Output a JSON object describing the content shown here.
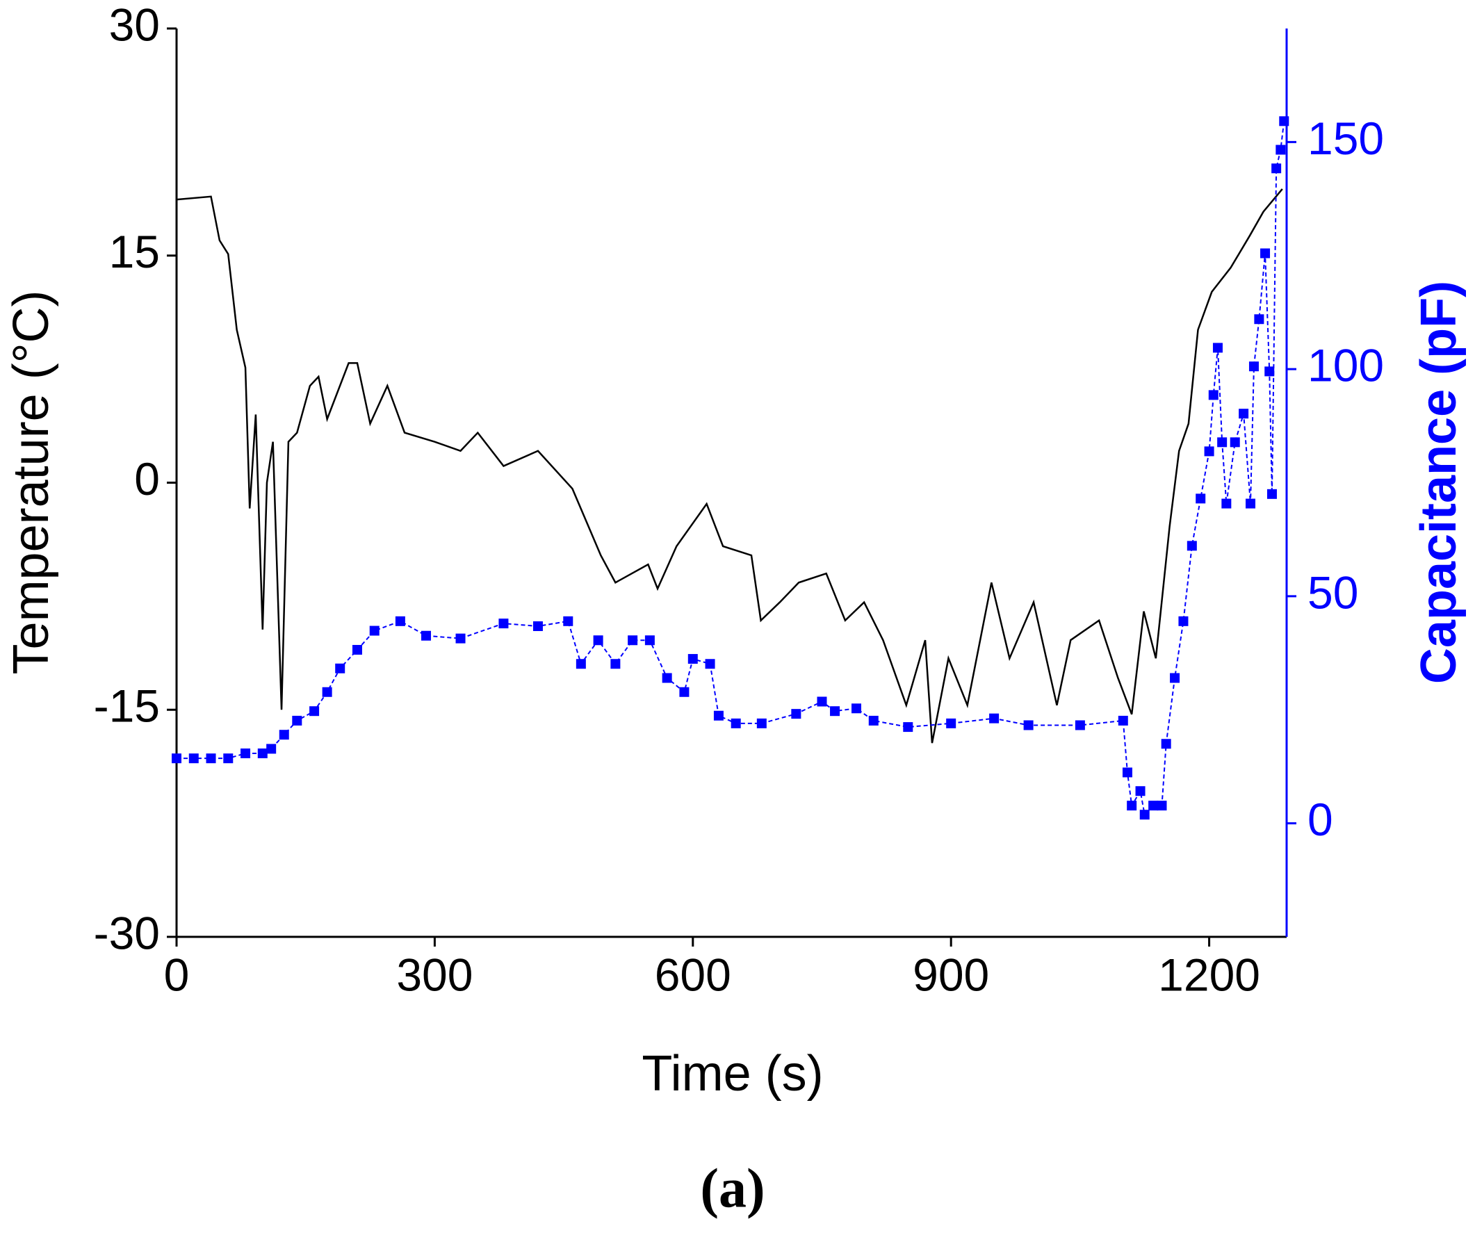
{
  "chart_data": {
    "type": "line",
    "xlabel": "Time (s)",
    "ylabel": "Temperature (°C)",
    "y2label": "Capacitance (pF)",
    "caption": "(a)",
    "xlim": [
      0,
      1290
    ],
    "xticks": [
      0,
      300,
      600,
      900,
      1200
    ],
    "ylim": [
      -30,
      30
    ],
    "yticks": [
      -30,
      -15,
      0,
      15,
      30
    ],
    "y2lim": [
      -25,
      175
    ],
    "y2ticks": [
      0,
      50,
      100,
      150
    ],
    "series": [
      {
        "color": "#000000",
        "marker": false,
        "x": [
          0,
          40,
          50,
          60,
          70,
          80,
          85,
          92,
          100,
          105,
          112,
          122,
          130,
          140,
          155,
          165,
          175,
          200,
          210,
          225,
          245,
          265,
          300,
          330,
          350,
          380,
          420,
          460,
          493,
          510,
          548,
          559,
          581,
          616,
          635,
          668,
          679,
          701,
          723,
          755,
          777,
          799,
          821,
          848,
          870,
          878,
          897,
          919,
          947,
          968,
          996,
          1023,
          1039,
          1072,
          1094,
          1110,
          1124,
          1138,
          1154,
          1165,
          1176,
          1187,
          1203,
          1225,
          1247,
          1263,
          1285
        ],
        "values": [
          18.7,
          18.9,
          16,
          15.1,
          10.1,
          7.6,
          -1.7,
          4.5,
          -9.7,
          0.0,
          2.7,
          -15,
          2.7,
          3.3,
          6.4,
          7.0,
          4.2,
          7.9,
          7.9,
          3.9,
          6.4,
          3.3,
          2.7,
          2.1,
          3.3,
          1.1,
          2.1,
          -0.4,
          -4.8,
          -6.6,
          -5.4,
          -7.0,
          -4.2,
          -1.4,
          -4.2,
          -4.8,
          -9.1,
          -7.9,
          -6.6,
          -6.0,
          -9.1,
          -7.9,
          -10.4,
          -14.7,
          -10.4,
          -17.2,
          -11.6,
          -14.7,
          -6.6,
          -11.6,
          -7.9,
          -14.7,
          -10.4,
          -9.1,
          -12.9,
          -15.3,
          -8.5,
          -11.6,
          -2.9,
          2.1,
          3.9,
          10.1,
          12.6,
          14.2,
          16.3,
          17.9,
          19.4
        ]
      },
      {
        "color": "#0000ff",
        "marker": true,
        "axis": "y2",
        "x": [
          0,
          20,
          40,
          60,
          80,
          100,
          110,
          125,
          140,
          160,
          175,
          190,
          210,
          230,
          260,
          290,
          330,
          380,
          420,
          455,
          470,
          490,
          510,
          530,
          550,
          570,
          590,
          600,
          620,
          630,
          650,
          680,
          720,
          750,
          765,
          790,
          810,
          850,
          900,
          950,
          990,
          1050,
          1100,
          1105,
          1110,
          1120,
          1125,
          1135,
          1145,
          1150,
          1160,
          1170,
          1180,
          1190,
          1200,
          1205,
          1210,
          1215,
          1220,
          1230,
          1240,
          1248,
          1252,
          1258,
          1265,
          1270,
          1273,
          1278,
          1283,
          1287
        ],
        "values": [
          14.3,
          14.3,
          14.3,
          14.3,
          15.4,
          15.4,
          16.4,
          19.5,
          22.6,
          24.7,
          28.9,
          34.1,
          38.2,
          42.4,
          44.5,
          41.3,
          40.7,
          44.0,
          43.4,
          44.5,
          35.1,
          40.3,
          35.1,
          40.3,
          40.3,
          32.0,
          28.9,
          36.2,
          35.1,
          23.7,
          22.0,
          22.0,
          24.1,
          26.8,
          24.7,
          25.3,
          22.6,
          21.2,
          22.0,
          23.1,
          21.6,
          21.6,
          22.6,
          11.2,
          3.9,
          7.1,
          1.9,
          3.9,
          3.9,
          17.5,
          32.0,
          44.5,
          61.1,
          71.5,
          81.9,
          94.3,
          104.7,
          83.9,
          70.4,
          83.9,
          90.2,
          70.4,
          100.6,
          111.0,
          125.5,
          99.5,
          72.5,
          144.2,
          148.3,
          154.6
        ]
      }
    ]
  }
}
